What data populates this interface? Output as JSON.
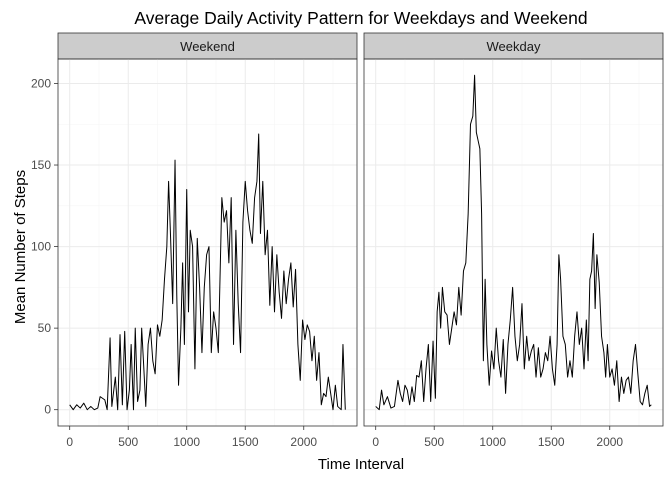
{
  "chart_data": {
    "type": "line",
    "title": "Average Daily Activity Pattern for Weekdays and Weekend",
    "xlabel": "Time Interval",
    "ylabel": "Mean Number of Steps",
    "xlim": [
      -100,
      2455
    ],
    "ylim": [
      -10,
      215
    ],
    "xticks": [
      0,
      500,
      1000,
      1500,
      2000
    ],
    "yticks": [
      0,
      50,
      100,
      150,
      200
    ],
    "grid": true,
    "legend": "none",
    "panels": [
      {
        "name": "Weekend",
        "points": [
          [
            0,
            3
          ],
          [
            30,
            0
          ],
          [
            60,
            3
          ],
          [
            90,
            1
          ],
          [
            120,
            4
          ],
          [
            150,
            0
          ],
          [
            180,
            2
          ],
          [
            210,
            0
          ],
          [
            240,
            1
          ],
          [
            260,
            8
          ],
          [
            300,
            6
          ],
          [
            320,
            0
          ],
          [
            345,
            44
          ],
          [
            360,
            2
          ],
          [
            390,
            20
          ],
          [
            410,
            0
          ],
          [
            430,
            46
          ],
          [
            450,
            3
          ],
          [
            470,
            48
          ],
          [
            490,
            0
          ],
          [
            510,
            12
          ],
          [
            525,
            40
          ],
          [
            545,
            0
          ],
          [
            560,
            50
          ],
          [
            580,
            5
          ],
          [
            600,
            12
          ],
          [
            615,
            50
          ],
          [
            630,
            30
          ],
          [
            650,
            2
          ],
          [
            670,
            40
          ],
          [
            690,
            50
          ],
          [
            710,
            30
          ],
          [
            730,
            22
          ],
          [
            750,
            52
          ],
          [
            770,
            45
          ],
          [
            790,
            55
          ],
          [
            810,
            80
          ],
          [
            830,
            100
          ],
          [
            845,
            140
          ],
          [
            860,
            110
          ],
          [
            880,
            65
          ],
          [
            900,
            153
          ],
          [
            915,
            70
          ],
          [
            930,
            15
          ],
          [
            950,
            50
          ],
          [
            965,
            90
          ],
          [
            980,
            40
          ],
          [
            1000,
            135
          ],
          [
            1015,
            60
          ],
          [
            1030,
            110
          ],
          [
            1050,
            100
          ],
          [
            1070,
            25
          ],
          [
            1090,
            105
          ],
          [
            1110,
            75
          ],
          [
            1130,
            35
          ],
          [
            1150,
            75
          ],
          [
            1170,
            95
          ],
          [
            1190,
            100
          ],
          [
            1210,
            35
          ],
          [
            1230,
            60
          ],
          [
            1250,
            50
          ],
          [
            1270,
            35
          ],
          [
            1300,
            130
          ],
          [
            1320,
            115
          ],
          [
            1340,
            122
          ],
          [
            1360,
            90
          ],
          [
            1380,
            130
          ],
          [
            1400,
            40
          ],
          [
            1420,
            110
          ],
          [
            1440,
            65
          ],
          [
            1460,
            35
          ],
          [
            1480,
            115
          ],
          [
            1500,
            140
          ],
          [
            1520,
            122
          ],
          [
            1540,
            110
          ],
          [
            1560,
            102
          ],
          [
            1580,
            130
          ],
          [
            1600,
            140
          ],
          [
            1615,
            169
          ],
          [
            1630,
            108
          ],
          [
            1650,
            140
          ],
          [
            1670,
            95
          ],
          [
            1690,
            110
          ],
          [
            1710,
            64
          ],
          [
            1730,
            100
          ],
          [
            1750,
            60
          ],
          [
            1770,
            95
          ],
          [
            1790,
            72
          ],
          [
            1810,
            56
          ],
          [
            1830,
            85
          ],
          [
            1850,
            65
          ],
          [
            1870,
            80
          ],
          [
            1890,
            90
          ],
          [
            1910,
            63
          ],
          [
            1930,
            86
          ],
          [
            1950,
            40
          ],
          [
            1970,
            18
          ],
          [
            1990,
            55
          ],
          [
            2010,
            43
          ],
          [
            2030,
            52
          ],
          [
            2050,
            48
          ],
          [
            2070,
            30
          ],
          [
            2090,
            45
          ],
          [
            2110,
            18
          ],
          [
            2130,
            35
          ],
          [
            2150,
            3
          ],
          [
            2170,
            10
          ],
          [
            2190,
            8
          ],
          [
            2210,
            20
          ],
          [
            2230,
            10
          ],
          [
            2250,
            0
          ],
          [
            2270,
            15
          ],
          [
            2290,
            2
          ],
          [
            2320,
            0
          ],
          [
            2335,
            40
          ],
          [
            2355,
            0
          ]
        ]
      },
      {
        "name": "Weekday",
        "points": [
          [
            0,
            2
          ],
          [
            30,
            0
          ],
          [
            50,
            12
          ],
          [
            70,
            3
          ],
          [
            100,
            8
          ],
          [
            130,
            1
          ],
          [
            160,
            2
          ],
          [
            190,
            18
          ],
          [
            210,
            10
          ],
          [
            230,
            5
          ],
          [
            250,
            15
          ],
          [
            270,
            12
          ],
          [
            290,
            3
          ],
          [
            310,
            14
          ],
          [
            330,
            5
          ],
          [
            350,
            21
          ],
          [
            370,
            20
          ],
          [
            390,
            30
          ],
          [
            410,
            5
          ],
          [
            430,
            25
          ],
          [
            450,
            40
          ],
          [
            470,
            5
          ],
          [
            490,
            42
          ],
          [
            510,
            7
          ],
          [
            525,
            60
          ],
          [
            540,
            72
          ],
          [
            555,
            50
          ],
          [
            570,
            75
          ],
          [
            590,
            60
          ],
          [
            610,
            58
          ],
          [
            630,
            40
          ],
          [
            650,
            50
          ],
          [
            670,
            60
          ],
          [
            690,
            52
          ],
          [
            710,
            75
          ],
          [
            730,
            58
          ],
          [
            750,
            85
          ],
          [
            770,
            90
          ],
          [
            790,
            120
          ],
          [
            810,
            175
          ],
          [
            830,
            180
          ],
          [
            845,
            205
          ],
          [
            860,
            170
          ],
          [
            875,
            165
          ],
          [
            890,
            160
          ],
          [
            905,
            120
          ],
          [
            920,
            30
          ],
          [
            935,
            80
          ],
          [
            950,
            40
          ],
          [
            970,
            15
          ],
          [
            990,
            36
          ],
          [
            1010,
            25
          ],
          [
            1030,
            50
          ],
          [
            1050,
            30
          ],
          [
            1070,
            20
          ],
          [
            1090,
            43
          ],
          [
            1110,
            10
          ],
          [
            1130,
            40
          ],
          [
            1150,
            55
          ],
          [
            1170,
            75
          ],
          [
            1190,
            45
          ],
          [
            1210,
            30
          ],
          [
            1230,
            40
          ],
          [
            1250,
            65
          ],
          [
            1270,
            25
          ],
          [
            1290,
            45
          ],
          [
            1310,
            30
          ],
          [
            1330,
            36
          ],
          [
            1350,
            40
          ],
          [
            1370,
            20
          ],
          [
            1390,
            38
          ],
          [
            1410,
            20
          ],
          [
            1430,
            25
          ],
          [
            1450,
            35
          ],
          [
            1470,
            30
          ],
          [
            1490,
            45
          ],
          [
            1510,
            25
          ],
          [
            1530,
            15
          ],
          [
            1550,
            40
          ],
          [
            1565,
            95
          ],
          [
            1580,
            80
          ],
          [
            1600,
            45
          ],
          [
            1620,
            40
          ],
          [
            1640,
            20
          ],
          [
            1660,
            30
          ],
          [
            1680,
            20
          ],
          [
            1700,
            45
          ],
          [
            1720,
            60
          ],
          [
            1740,
            40
          ],
          [
            1760,
            50
          ],
          [
            1780,
            25
          ],
          [
            1800,
            55
          ],
          [
            1815,
            30
          ],
          [
            1830,
            80
          ],
          [
            1845,
            85
          ],
          [
            1860,
            108
          ],
          [
            1875,
            62
          ],
          [
            1890,
            95
          ],
          [
            1910,
            78
          ],
          [
            1930,
            45
          ],
          [
            1950,
            35
          ],
          [
            1965,
            20
          ],
          [
            1980,
            40
          ],
          [
            2000,
            20
          ],
          [
            2020,
            25
          ],
          [
            2040,
            15
          ],
          [
            2060,
            30
          ],
          [
            2080,
            5
          ],
          [
            2100,
            20
          ],
          [
            2120,
            10
          ],
          [
            2140,
            18
          ],
          [
            2160,
            20
          ],
          [
            2180,
            10
          ],
          [
            2200,
            30
          ],
          [
            2220,
            40
          ],
          [
            2240,
            22
          ],
          [
            2260,
            5
          ],
          [
            2280,
            3
          ],
          [
            2300,
            10
          ],
          [
            2320,
            15
          ],
          [
            2340,
            2
          ],
          [
            2355,
            3
          ]
        ]
      }
    ]
  }
}
